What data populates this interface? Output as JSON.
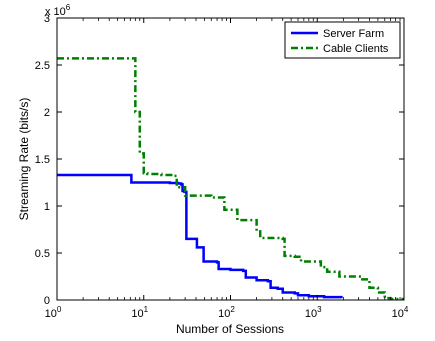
{
  "chart_data": {
    "type": "line",
    "xlabel": "Number of Sessions",
    "ylabel": "Streaming Rate (bits/s)",
    "y_multiplier_label": "x 10",
    "y_multiplier_exponent": "6",
    "x_scale": "log",
    "xlim": [
      1,
      10000
    ],
    "ylim": [
      0,
      3000000
    ],
    "legend_position": "top-right",
    "grid": false,
    "x_ticks": [
      {
        "value": 1,
        "base": "10",
        "exp": "0"
      },
      {
        "value": 10,
        "base": "10",
        "exp": "1"
      },
      {
        "value": 100,
        "base": "10",
        "exp": "2"
      },
      {
        "value": 1000,
        "base": "10",
        "exp": "3"
      },
      {
        "value": 10000,
        "base": "10",
        "exp": "4"
      }
    ],
    "y_ticks": [
      {
        "value": 0,
        "label": "0"
      },
      {
        "value": 500000,
        "label": "0.5"
      },
      {
        "value": 1000000,
        "label": "1"
      },
      {
        "value": 1500000,
        "label": "1.5"
      },
      {
        "value": 2000000,
        "label": "2"
      },
      {
        "value": 2500000,
        "label": "2.5"
      },
      {
        "value": 3000000,
        "label": "3"
      }
    ],
    "series": [
      {
        "name": "Server Farm",
        "color": "#0000ff",
        "style": "solid",
        "points": [
          [
            1,
            1330000
          ],
          [
            6.5,
            1330000
          ],
          [
            7.2,
            1250000
          ],
          [
            20,
            1245000
          ],
          [
            25,
            1240000
          ],
          [
            27,
            1230000
          ],
          [
            28,
            1160000
          ],
          [
            29.5,
            1150000
          ],
          [
            31,
            650000
          ],
          [
            40,
            650000
          ],
          [
            41,
            560000
          ],
          [
            47,
            560000
          ],
          [
            49,
            410000
          ],
          [
            70,
            400000
          ],
          [
            73,
            330000
          ],
          [
            95,
            330000
          ],
          [
            100,
            320000
          ],
          [
            140,
            310000
          ],
          [
            150,
            240000
          ],
          [
            180,
            240000
          ],
          [
            200,
            210000
          ],
          [
            270,
            200000
          ],
          [
            290,
            130000
          ],
          [
            350,
            120000
          ],
          [
            400,
            80000
          ],
          [
            550,
            70000
          ],
          [
            600,
            50000
          ],
          [
            800,
            40000
          ],
          [
            1200,
            30000
          ],
          [
            1900,
            20000
          ]
        ]
      },
      {
        "name": "Cable Clients",
        "color": "#008000",
        "style": "dashdot",
        "points": [
          [
            1,
            2570000
          ],
          [
            7,
            2570000
          ],
          [
            8,
            2000000
          ],
          [
            9,
            1560000
          ],
          [
            10,
            1350000
          ],
          [
            11,
            1340000
          ],
          [
            16,
            1330000
          ],
          [
            22,
            1320000
          ],
          [
            24,
            1200000
          ],
          [
            28,
            1200000
          ],
          [
            30,
            1110000
          ],
          [
            50,
            1110000
          ],
          [
            60,
            1090000
          ],
          [
            85,
            960000
          ],
          [
            120,
            850000
          ],
          [
            200,
            730000
          ],
          [
            220,
            660000
          ],
          [
            400,
            650000
          ],
          [
            420,
            470000
          ],
          [
            550,
            460000
          ],
          [
            650,
            410000
          ],
          [
            1100,
            350000
          ],
          [
            1300,
            300000
          ],
          [
            1800,
            250000
          ],
          [
            3200,
            220000
          ],
          [
            4000,
            130000
          ],
          [
            5000,
            80000
          ],
          [
            6000,
            20000
          ],
          [
            7000,
            10000
          ],
          [
            10000,
            0
          ]
        ]
      }
    ]
  }
}
